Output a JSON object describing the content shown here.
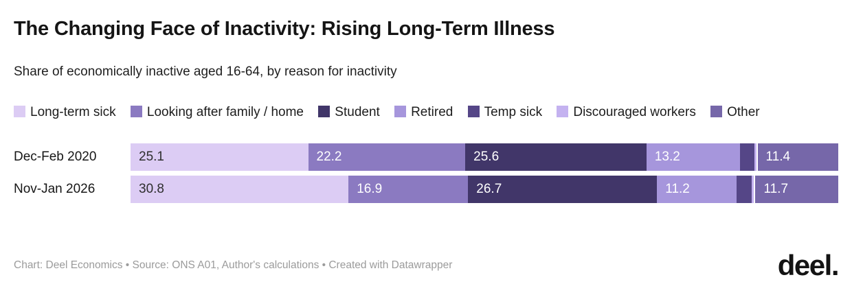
{
  "header": {
    "title": "The Changing Face of Inactivity: Rising Long-Term Illness",
    "subtitle": "Share of economically inactive aged 16-64, by reason for inactivity"
  },
  "chart_data": {
    "type": "bar",
    "variant": "horizontal-stacked",
    "stack_total": 100,
    "xlim": [
      0,
      100
    ],
    "grid": false,
    "legend_position": "top",
    "categories": [
      "Dec-Feb 2020",
      "Nov-Jan 2026"
    ],
    "series": [
      {
        "name": "Long-term sick",
        "color": "#dcccf4",
        "values": [
          25.1,
          30.8
        ],
        "labeled": true,
        "label_style": "dark"
      },
      {
        "name": "Looking after family / home",
        "color": "#8b7ac1",
        "values": [
          22.2,
          16.9
        ],
        "labeled": true,
        "label_style": "light"
      },
      {
        "name": "Student",
        "color": "#413669",
        "values": [
          25.6,
          26.7
        ],
        "labeled": true,
        "label_style": "light"
      },
      {
        "name": "Retired",
        "color": "#a696dc",
        "values": [
          13.2,
          11.2
        ],
        "labeled": true,
        "label_style": "light"
      },
      {
        "name": "Temp sick",
        "color": "#554687",
        "values": [
          2.1,
          2.2
        ],
        "labeled": false,
        "label_style": "light"
      },
      {
        "name": "Discouraged workers",
        "color": "#c4b2f0",
        "values": [
          0.4,
          0.5
        ],
        "labeled": false,
        "label_style": "dark",
        "separator_after": true
      },
      {
        "name": "Other",
        "color": "#7667a9",
        "values": [
          11.4,
          11.7
        ],
        "labeled": true,
        "label_style": "light"
      }
    ],
    "title": "The Changing Face of Inactivity: Rising Long-Term Illness",
    "xlabel": "",
    "ylabel": ""
  },
  "footer": {
    "attribution": "Chart: Deel Economics • Source: ONS A01, Author's calculations • Created with Datawrapper",
    "logo_text": "deel."
  }
}
